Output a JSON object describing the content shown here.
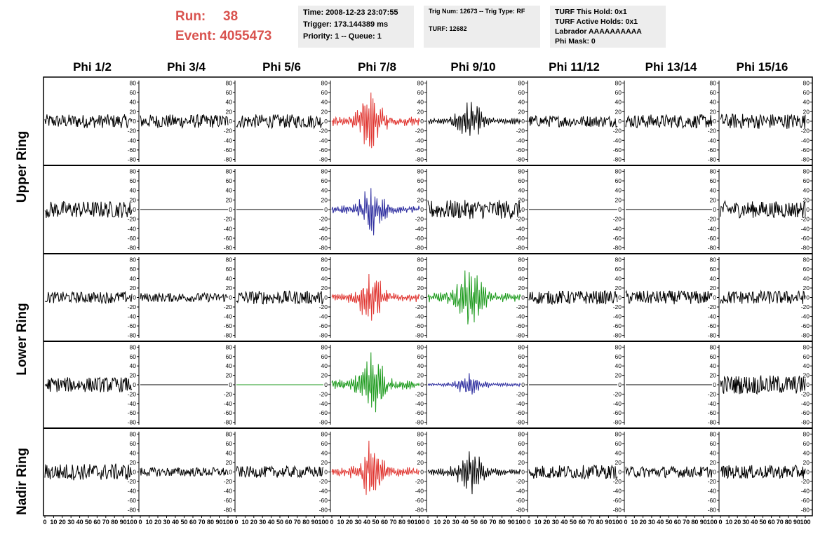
{
  "header": {
    "run_label": "Run:",
    "run_value": "38",
    "event_label": "Event:",
    "event_value": "4055473",
    "time": "Time: 2008-12-23 23:07:55",
    "trigger": "Trigger: 173.144389 ms",
    "priority": "Priority: 1 -- Queue: 1",
    "trig_num": "Trig Num: 12673 -- Trig Type: RF",
    "turf": "TURF: 12682",
    "turf_this_hold": "TURF This Hold: 0x1",
    "turf_active_holds": "TURF Active Holds: 0x1",
    "labrador": "Labrador AAAAAAAAAA",
    "phi_mask": "Phi Mask: 0"
  },
  "chart_data": {
    "type": "line",
    "columns": [
      "Phi 1/2",
      "Phi 3/4",
      "Phi 5/6",
      "Phi 7/8",
      "Phi 9/10",
      "Phi 11/12",
      "Phi 13/14",
      "Phi 15/16"
    ],
    "ring_labels": [
      "Upper Ring",
      "Lower Ring",
      "Nadir Ring"
    ],
    "x_ticks": [
      0,
      10,
      20,
      30,
      40,
      50,
      60,
      70,
      80,
      90,
      100
    ],
    "xlim": [
      0,
      100
    ],
    "ylim": [
      -85,
      85
    ],
    "y_ticks": [
      -80,
      -60,
      -40,
      -20,
      0,
      20,
      40,
      60,
      80
    ],
    "colors": {
      "black": "#000000",
      "red": "#e0342f",
      "blue": "#2b2b9e",
      "green": "#1c9a1c",
      "axis": "#000000"
    },
    "panels": [
      [
        {
          "color": "black",
          "amplitude": 18,
          "mode": "noise"
        },
        {
          "color": "black",
          "amplitude": 18,
          "mode": "noise"
        },
        {
          "color": "black",
          "amplitude": 18,
          "mode": "noise"
        },
        {
          "color": "red",
          "amplitude": 70,
          "mode": "pulse"
        },
        {
          "color": "black",
          "amplitude": 45,
          "mode": "pulse"
        },
        {
          "color": "black",
          "amplitude": 15,
          "mode": "noise"
        },
        {
          "color": "black",
          "amplitude": 18,
          "mode": "noise"
        },
        {
          "color": "black",
          "amplitude": 20,
          "mode": "noise"
        }
      ],
      [
        {
          "color": "black",
          "amplitude": 22,
          "mode": "noise"
        },
        {
          "color": "black",
          "amplitude": 0,
          "mode": "flat"
        },
        {
          "color": "black",
          "amplitude": 0,
          "mode": "flat"
        },
        {
          "color": "blue",
          "amplitude": 55,
          "mode": "pulse"
        },
        {
          "color": "black",
          "amplitude": 25,
          "mode": "noise"
        },
        {
          "color": "black",
          "amplitude": 0,
          "mode": "flat"
        },
        {
          "color": "black",
          "amplitude": 0,
          "mode": "flat"
        },
        {
          "color": "black",
          "amplitude": 22,
          "mode": "noise"
        }
      ],
      [
        {
          "color": "black",
          "amplitude": 15,
          "mode": "noise"
        },
        {
          "color": "black",
          "amplitude": 12,
          "mode": "noise"
        },
        {
          "color": "black",
          "amplitude": 18,
          "mode": "noise"
        },
        {
          "color": "red",
          "amplitude": 60,
          "mode": "pulse"
        },
        {
          "color": "green",
          "amplitude": 70,
          "mode": "pulse"
        },
        {
          "color": "black",
          "amplitude": 18,
          "mode": "noise"
        },
        {
          "color": "black",
          "amplitude": 18,
          "mode": "noise"
        },
        {
          "color": "black",
          "amplitude": 18,
          "mode": "noise"
        }
      ],
      [
        {
          "color": "black",
          "amplitude": 20,
          "mode": "noise"
        },
        {
          "color": "black",
          "amplitude": 0,
          "mode": "flat"
        },
        {
          "color": "green",
          "amplitude": 0,
          "mode": "flat"
        },
        {
          "color": "green",
          "amplitude": 75,
          "mode": "pulse"
        },
        {
          "color": "blue",
          "amplitude": 25,
          "mode": "pulse"
        },
        {
          "color": "black",
          "amplitude": 0,
          "mode": "flat"
        },
        {
          "color": "black",
          "amplitude": 0,
          "mode": "flat"
        },
        {
          "color": "black",
          "amplitude": 25,
          "mode": "noise"
        }
      ],
      [
        {
          "color": "black",
          "amplitude": 22,
          "mode": "noise"
        },
        {
          "color": "black",
          "amplitude": 12,
          "mode": "noise"
        },
        {
          "color": "black",
          "amplitude": 15,
          "mode": "noise"
        },
        {
          "color": "red",
          "amplitude": 65,
          "mode": "pulse"
        },
        {
          "color": "black",
          "amplitude": 50,
          "mode": "pulse"
        },
        {
          "color": "black",
          "amplitude": 18,
          "mode": "noise"
        },
        {
          "color": "black",
          "amplitude": 15,
          "mode": "noise"
        },
        {
          "color": "black",
          "amplitude": 18,
          "mode": "noise"
        }
      ]
    ]
  }
}
